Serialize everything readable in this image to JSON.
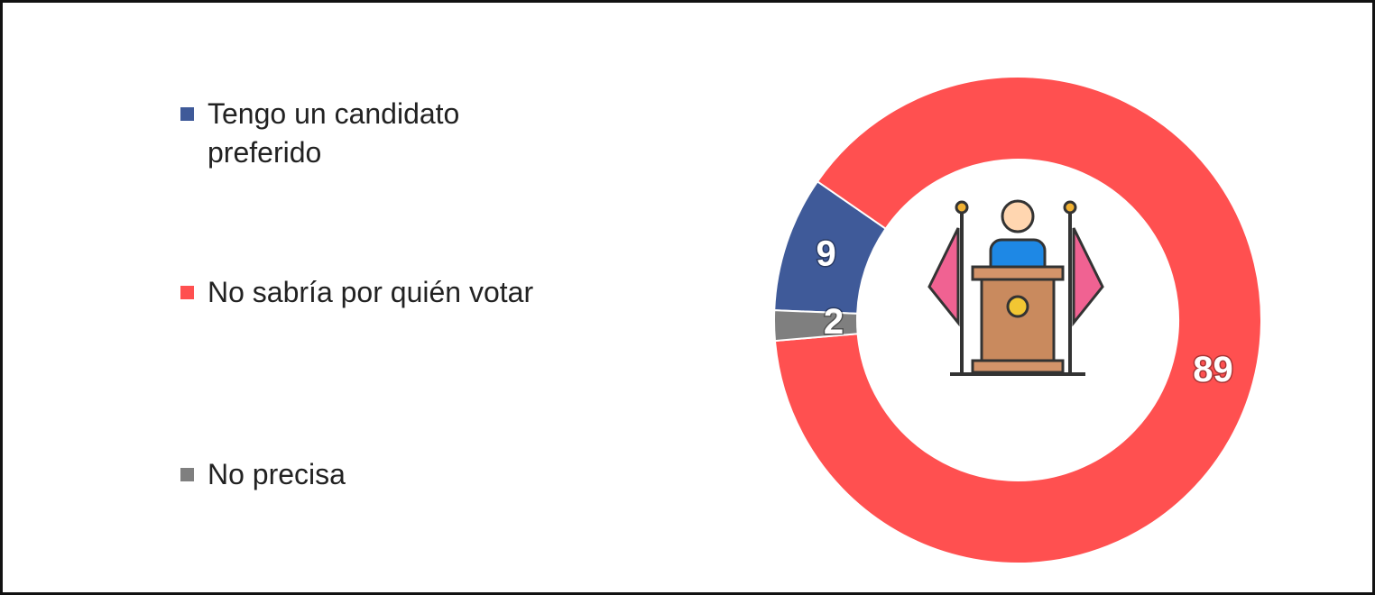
{
  "chart_data": {
    "type": "donut",
    "categories": [
      "Tengo un candidato preferido",
      "No sabría por quién votar",
      "No precisa"
    ],
    "values": [
      9,
      89,
      2
    ],
    "colors": [
      "#3f5a99",
      "#ff5050",
      "#7f7f7f"
    ],
    "legend": "left"
  }
}
